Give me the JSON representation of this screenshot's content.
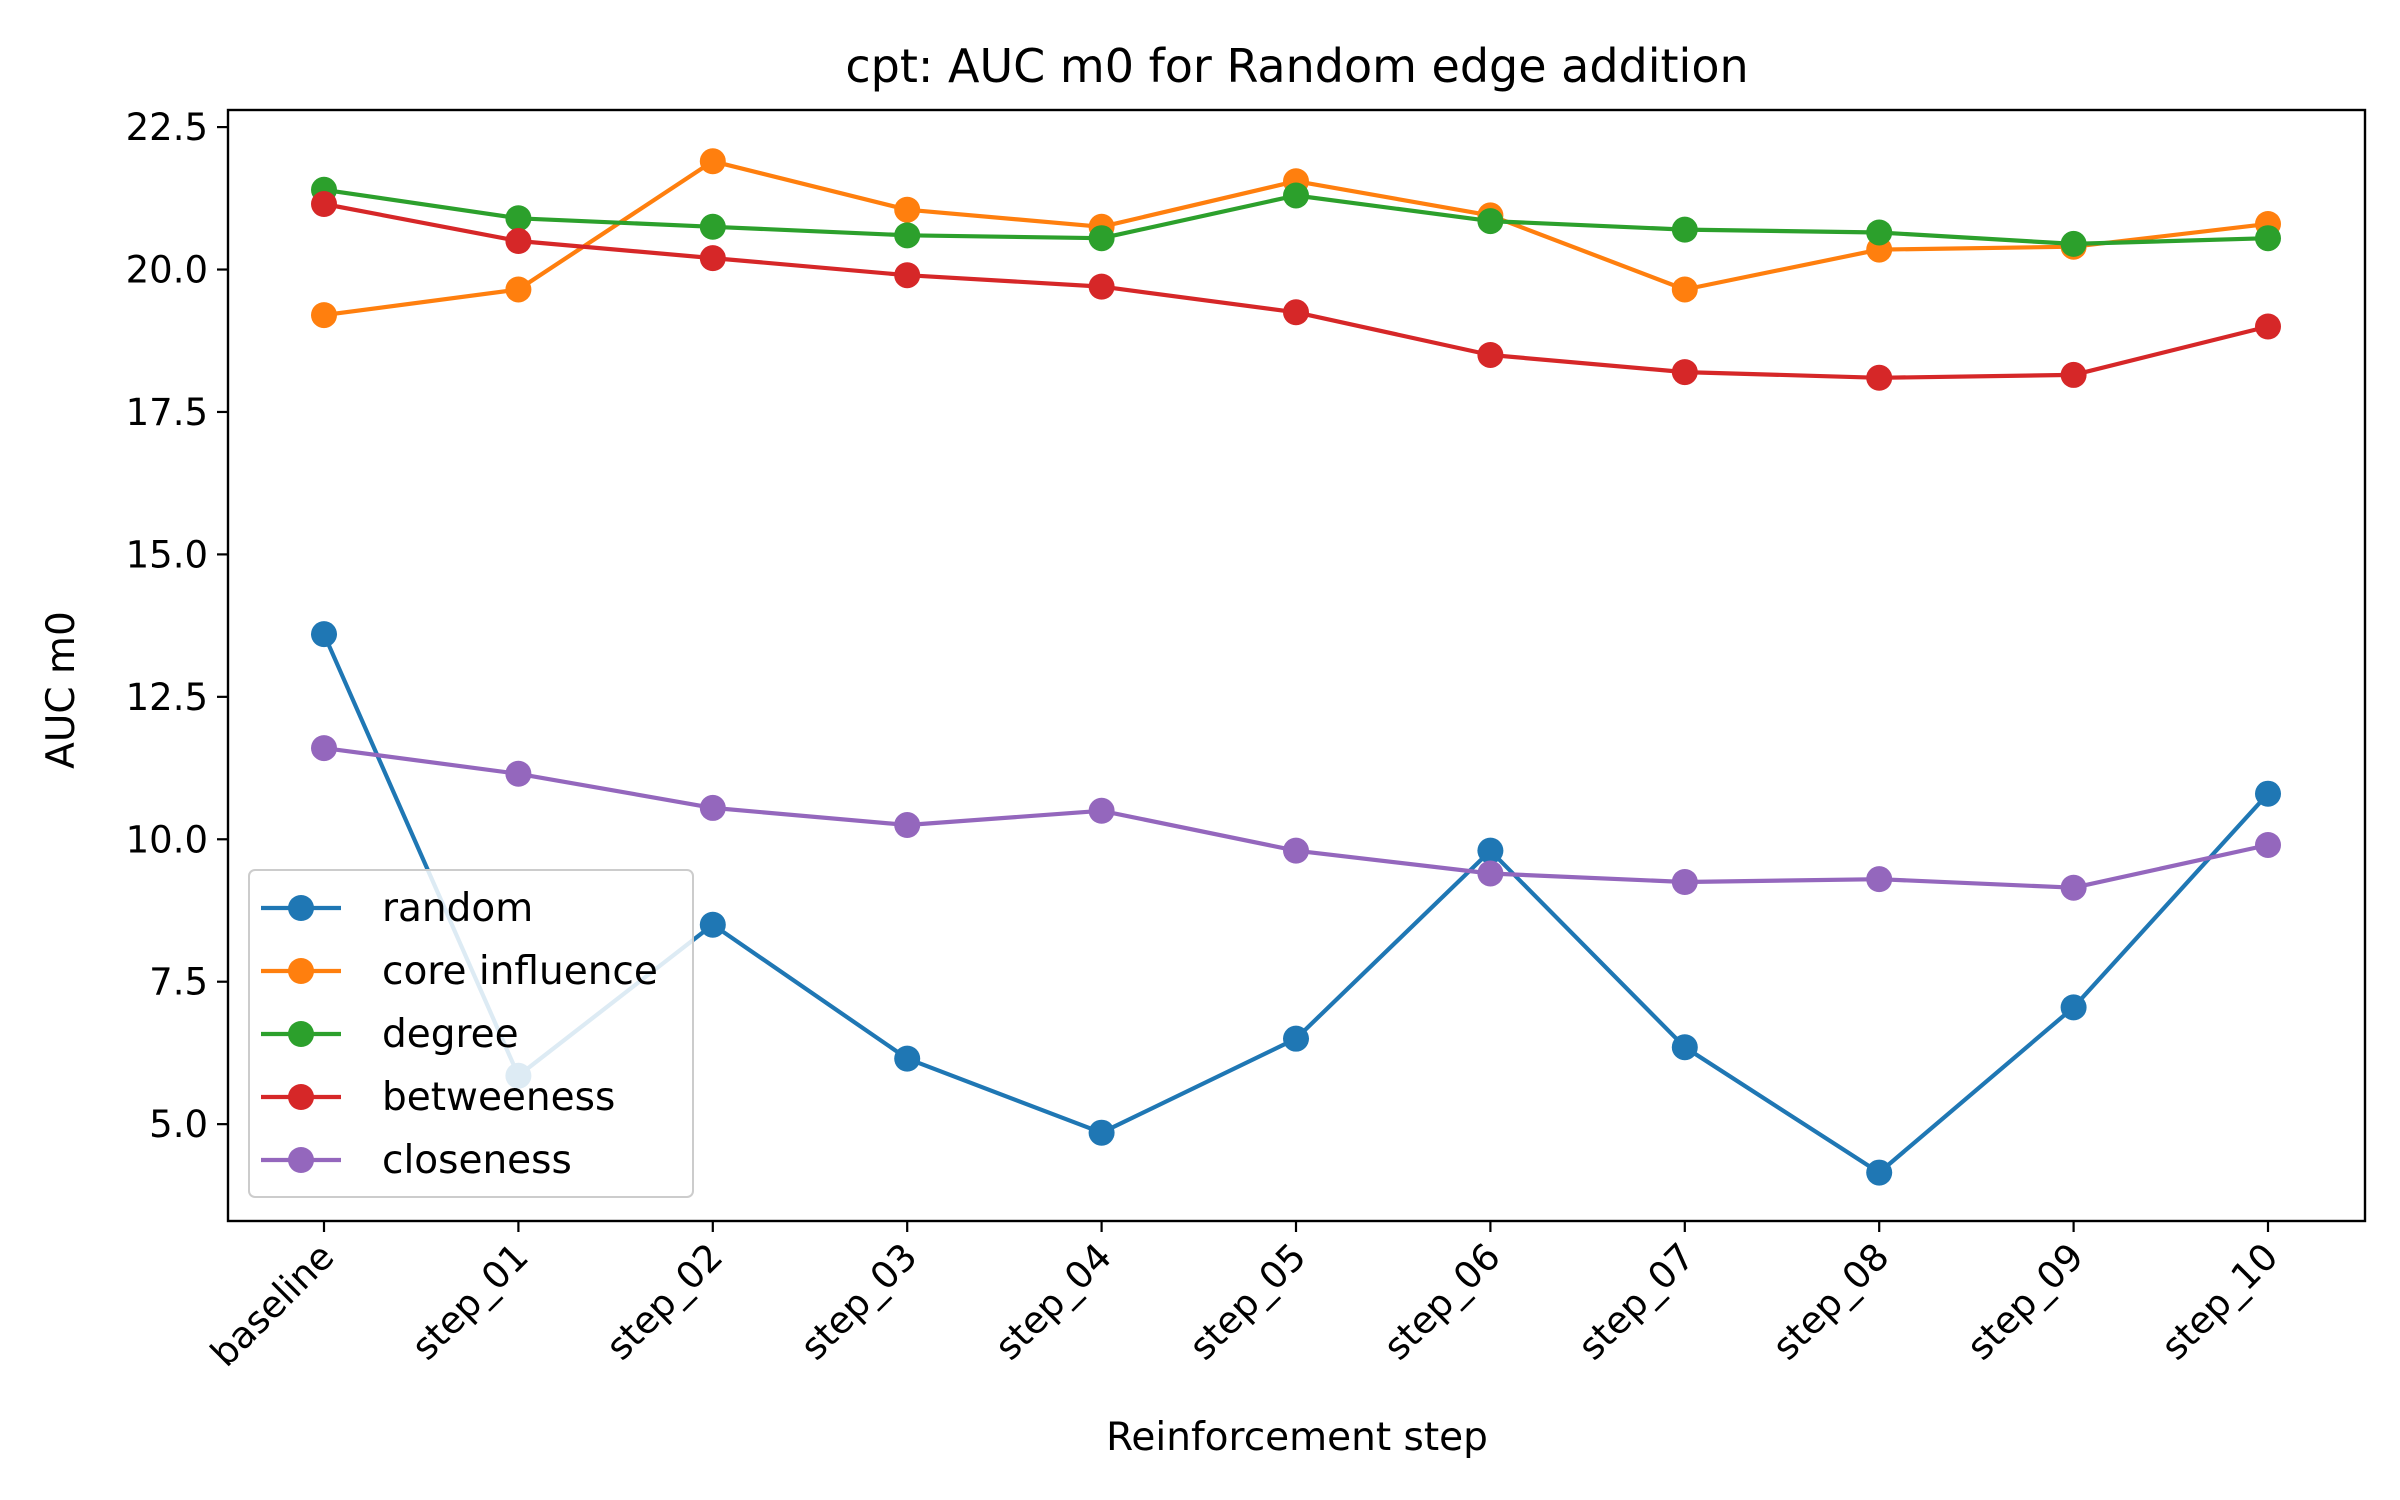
{
  "chart_data": {
    "type": "line",
    "title": "cpt: AUC m0 for Random edge addition",
    "xlabel": "Reinforcement step",
    "ylabel": "AUC m0",
    "categories": [
      "baseline",
      "step_01",
      "step_02",
      "step_03",
      "step_04",
      "step_05",
      "step_06",
      "step_07",
      "step_08",
      "step_09",
      "step_10"
    ],
    "ylim": [
      3.3,
      22.8
    ],
    "yticks": [
      "5.0",
      "7.5",
      "10.0",
      "12.5",
      "15.0",
      "17.5",
      "20.0",
      "22.5"
    ],
    "grid": false,
    "legend_position": "lower-left",
    "series": [
      {
        "name": "random",
        "color": "#1f77b4",
        "values": [
          13.6,
          5.85,
          8.5,
          6.15,
          4.85,
          6.5,
          9.8,
          6.35,
          4.15,
          7.05,
          10.8
        ]
      },
      {
        "name": "core influence",
        "color": "#ff7f0e",
        "values": [
          19.2,
          19.65,
          21.9,
          21.05,
          20.75,
          21.55,
          20.95,
          19.65,
          20.35,
          20.4,
          20.8
        ]
      },
      {
        "name": "degree",
        "color": "#2ca02c",
        "values": [
          21.4,
          20.9,
          20.75,
          20.6,
          20.55,
          21.3,
          20.85,
          20.7,
          20.65,
          20.45,
          20.55
        ]
      },
      {
        "name": "betweeness",
        "color": "#d62728",
        "values": [
          21.15,
          20.5,
          20.2,
          19.9,
          19.7,
          19.25,
          18.5,
          18.2,
          18.1,
          18.15,
          19.0
        ]
      },
      {
        "name": "closeness",
        "color": "#9467bd",
        "values": [
          11.6,
          11.15,
          10.55,
          10.25,
          10.5,
          9.8,
          9.4,
          9.25,
          9.3,
          9.15,
          9.9
        ]
      }
    ]
  }
}
